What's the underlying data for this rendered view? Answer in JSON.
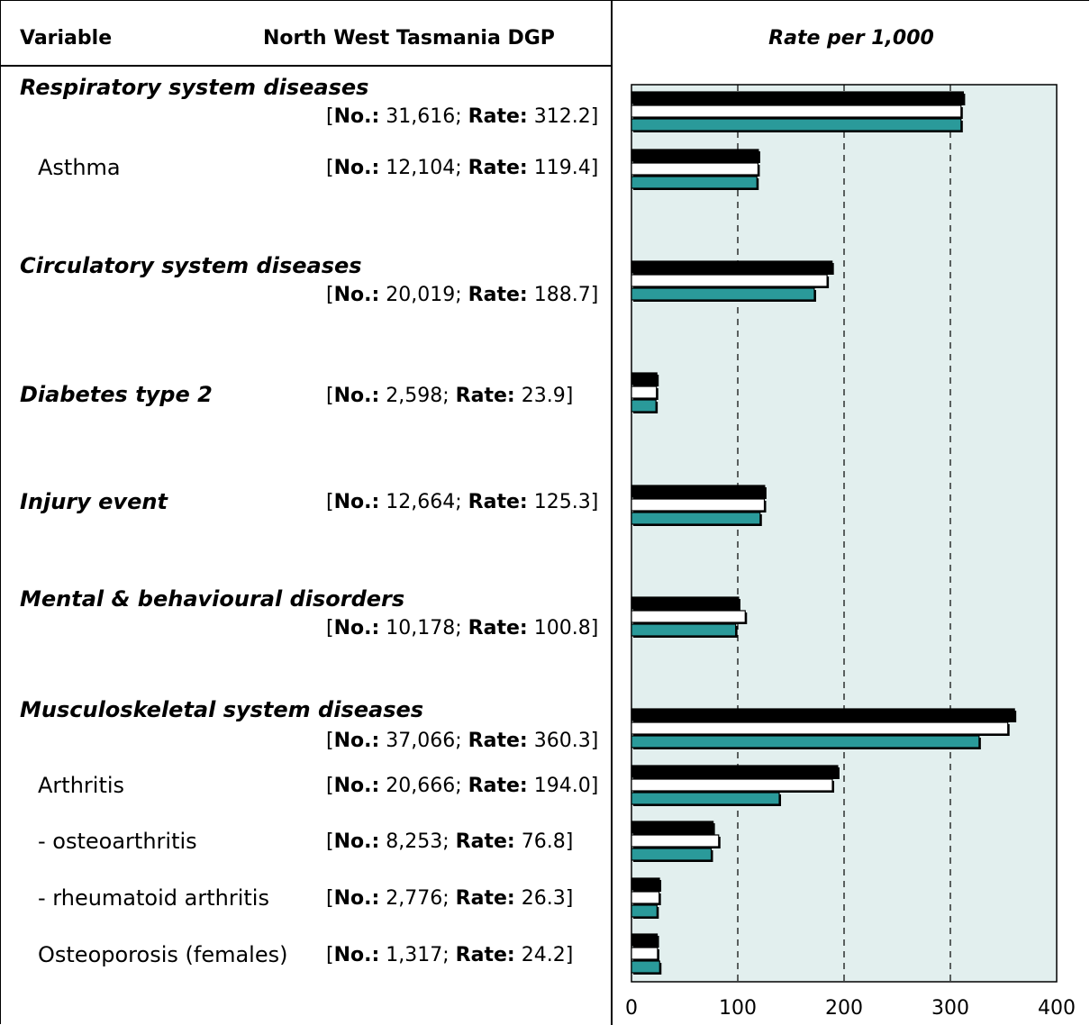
{
  "header": {
    "variable": "Variable",
    "region": "North West Tasmania DGP",
    "rate": "Rate per 1,000"
  },
  "rows": [
    {
      "label": "Respiratory system diseases",
      "kind": "main",
      "no": "31,616",
      "rate": "312.2"
    },
    {
      "label": "Asthma",
      "kind": "sub",
      "no": "12,104",
      "rate": "119.4"
    },
    {
      "label": "Circulatory system diseases",
      "kind": "main",
      "no": "20,019",
      "rate": "188.7"
    },
    {
      "label": "Diabetes type 2",
      "kind": "main",
      "no": "2,598",
      "rate": "23.9"
    },
    {
      "label": "Injury event",
      "kind": "main",
      "no": "12,664",
      "rate": "125.3"
    },
    {
      "label": "Mental & behavioural disorders",
      "kind": "main",
      "no": "10,178",
      "rate": "100.8"
    },
    {
      "label": "Musculoskeletal system diseases",
      "kind": "main",
      "no": "37,066",
      "rate": "360.3"
    },
    {
      "label": "Arthritis",
      "kind": "sub",
      "no": "20,666",
      "rate": "194.0"
    },
    {
      "label": "- osteoarthritis",
      "kind": "sub",
      "no": "8,253",
      "rate": "76.8"
    },
    {
      "label": "- rheumatoid arthritis",
      "kind": "sub",
      "no": "2,776",
      "rate": "26.3"
    },
    {
      "label": "Osteoporosis (females)",
      "kind": "sub",
      "no": "1,317",
      "rate": "24.2"
    }
  ],
  "stat_labels": {
    "no": "No.:",
    "rate": "Rate:"
  },
  "chart_data": {
    "type": "bar",
    "orientation": "horizontal",
    "xlabel": "Rate per 1,000",
    "xlim": [
      0,
      400
    ],
    "xticks": [
      "0",
      "100",
      "200",
      "300",
      "400"
    ],
    "grid": "vertical dashed at 100, 200, 300",
    "categories": [
      "Respiratory system diseases",
      "Asthma",
      "Circulatory system diseases",
      "Diabetes type 2",
      "Injury event",
      "Mental & behavioural disorders",
      "Musculoskeletal system diseases",
      "Arthritis",
      "- osteoarthritis",
      "- rheumatoid arthritis",
      "Osteoporosis (females)"
    ],
    "series": [
      {
        "color": "#000000",
        "values": [
          312.2,
          119.4,
          188.7,
          23.9,
          125.3,
          100.8,
          360.3,
          194.0,
          76.8,
          26.3,
          24.2
        ]
      },
      {
        "color": "#ffffff",
        "values": [
          310,
          119,
          184,
          23.5,
          125,
          107,
          354,
          189,
          82,
          26,
          24.5
        ]
      },
      {
        "color": "#2a9a9a",
        "values": [
          310,
          118,
          172,
          23,
          121,
          98,
          327,
          139,
          75,
          24,
          26.5
        ]
      }
    ],
    "colors": {
      "plot_bg": "#e2efee",
      "teal": "#2a9a9a"
    }
  }
}
